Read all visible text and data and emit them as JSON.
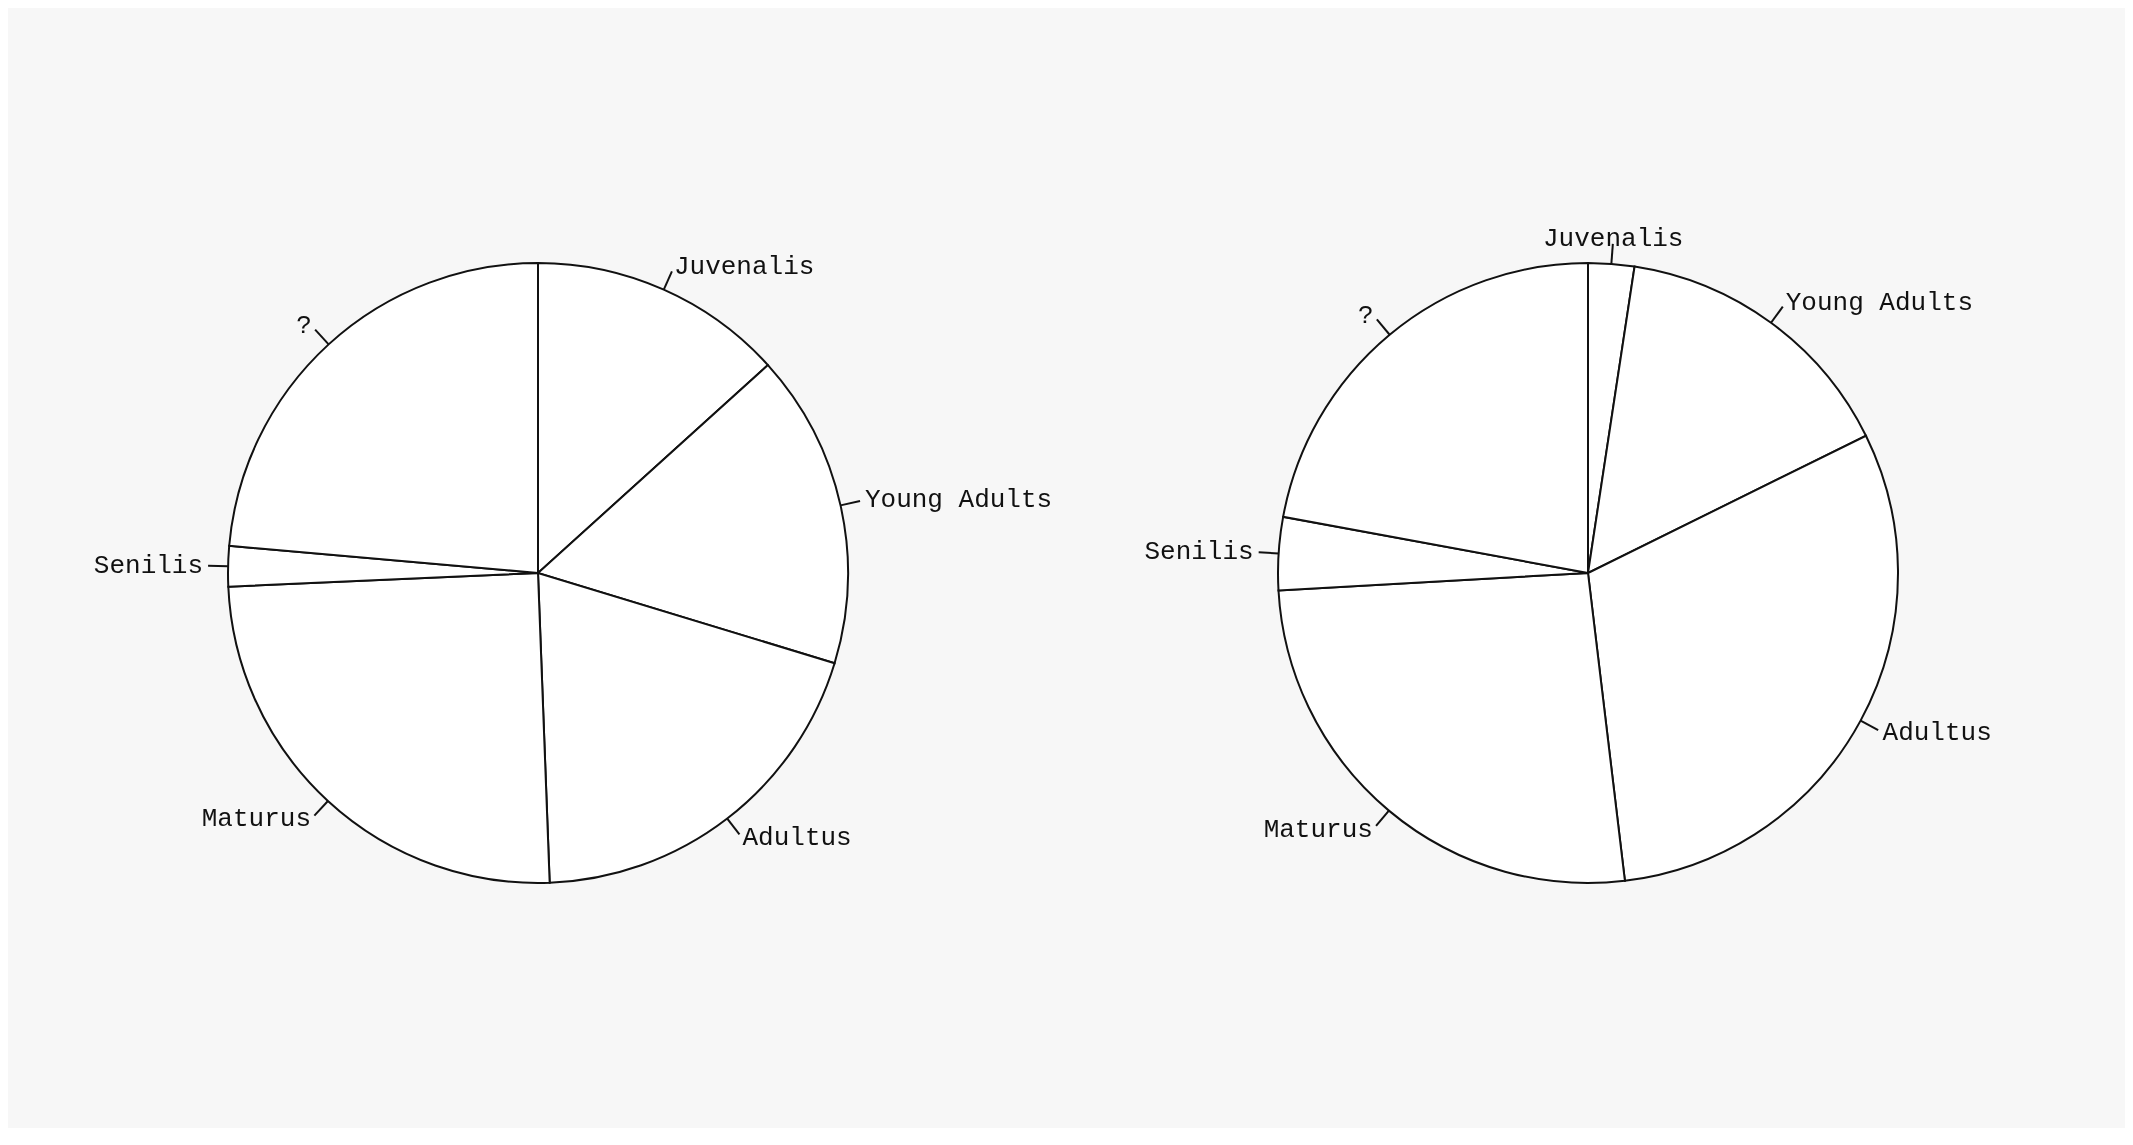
{
  "chart_data": [
    {
      "type": "pie",
      "categories": [
        "Juvenalis",
        "Young Adults",
        "Adultus",
        "Maturus",
        "Senilis",
        "?"
      ],
      "values": [
        13.3,
        16.4,
        19.7,
        24.9,
        2.1,
        23.6
      ],
      "colors": [
        "#ffffff",
        "#ffffff",
        "#ffffff",
        "#ffffff",
        "#ffffff",
        "#ffffff"
      ],
      "legend": false
    },
    {
      "type": "pie",
      "categories": [
        "Juvenalis",
        "Young Adults",
        "Adultus",
        "Maturus",
        "Senilis",
        "?"
      ],
      "values": [
        2.4,
        15.3,
        30.4,
        26.0,
        3.8,
        22.1
      ],
      "colors": [
        "#ffffff",
        "#ffffff",
        "#ffffff",
        "#ffffff",
        "#ffffff",
        "#ffffff"
      ],
      "legend": false
    }
  ]
}
